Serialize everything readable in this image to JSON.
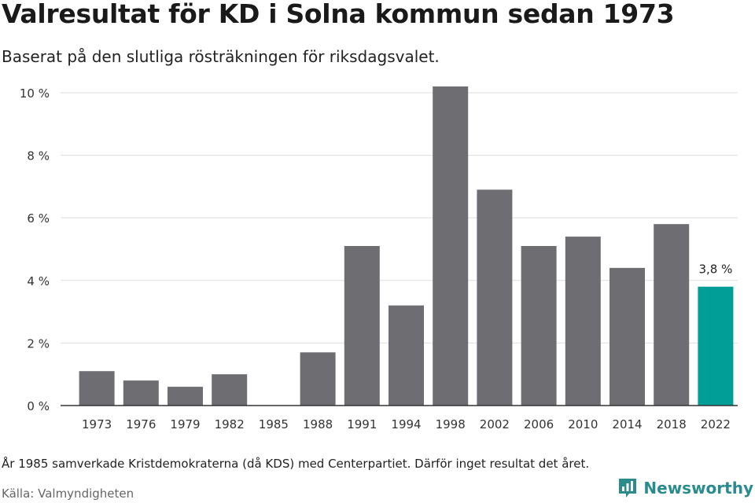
{
  "header": {
    "title": "Valresultat för KD i Solna kommun sedan 1973",
    "subtitle": "Baserat på den slutliga rösträkningen för riksdagsvalet."
  },
  "footer": {
    "note": "År 1985 samverkade Kristdemokraterna (då KDS) med Centerpartiet. Därför inget resultat det året.",
    "source": "Källa: Valmyndigheten",
    "brand": "Newsworthy",
    "brand_icon": "newsworthy-logo-icon"
  },
  "colors": {
    "bar": "#6e6d72",
    "highlight": "#009e96",
    "grid": "#dddddd",
    "axis": "#333333",
    "brand": "#2a8c8c"
  },
  "chart_data": {
    "type": "bar",
    "categories": [
      "1973",
      "1976",
      "1979",
      "1982",
      "1985",
      "1988",
      "1991",
      "1994",
      "1998",
      "2002",
      "2006",
      "2010",
      "2014",
      "2018",
      "2022"
    ],
    "values": [
      1.1,
      0.8,
      0.6,
      1.0,
      null,
      1.7,
      5.1,
      3.2,
      10.2,
      6.9,
      5.1,
      5.4,
      4.4,
      5.8,
      3.8
    ],
    "ylim": [
      0,
      10.2
    ],
    "yticks": [
      0,
      2,
      4,
      6,
      8,
      10
    ],
    "ytick_labels": [
      "0 %",
      "2 %",
      "4 %",
      "6 %",
      "8 %",
      "10 %"
    ],
    "highlight_index": 14,
    "data_labels": [
      {
        "index": 14,
        "text": "3,8 %"
      }
    ],
    "grid": true,
    "legend": "none"
  }
}
